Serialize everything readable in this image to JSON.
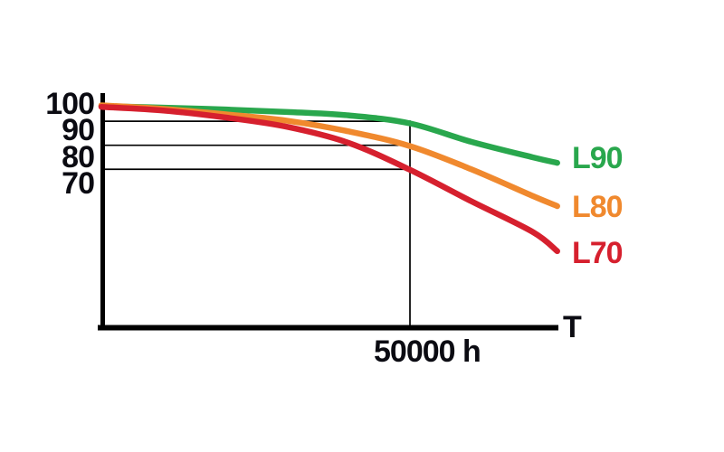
{
  "figure": {
    "background": "#ffffff",
    "axis_color": "#000000",
    "text_color": "#0b0b12"
  },
  "chart_data": {
    "type": "line",
    "title": "",
    "xlabel": "T",
    "ylabel": "",
    "x_unit": "h",
    "y_ticks": [
      100,
      90,
      80,
      70
    ],
    "x": [
      0,
      10000,
      20000,
      30000,
      40000,
      50000,
      60000,
      70000,
      74000
    ],
    "series": [
      {
        "name": "L90",
        "color": "#29a74d",
        "values": [
          98.7,
          98.1,
          97.4,
          96.5,
          95.2,
          92.2,
          85.3,
          79.5,
          77.4
        ]
      },
      {
        "name": "L80",
        "color": "#f0892e",
        "values": [
          99.0,
          97.6,
          95.6,
          93.2,
          89.2,
          83.7,
          75.0,
          65.0,
          61.2
        ]
      },
      {
        "name": "L70",
        "color": "#d6202e",
        "values": [
          98.4,
          97.0,
          94.4,
          90.9,
          84.9,
          74.8,
          63.0,
          51.5,
          44.3
        ]
      }
    ],
    "reference": {
      "vertical_line_x": 50000,
      "vertical_line_label": "50000 h",
      "horizontal_lines": [
        93,
        84,
        75
      ]
    },
    "legend_position": "right of curve ends",
    "grid": "off"
  }
}
